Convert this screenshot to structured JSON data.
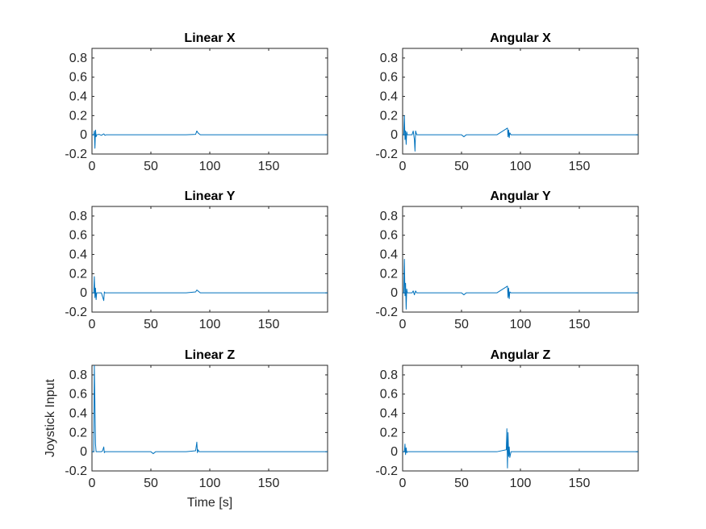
{
  "colors": {
    "series": "#0072BD",
    "axes": "#262626",
    "background": "#ffffff"
  },
  "chart_data": [
    {
      "type": "line",
      "title": "Linear X",
      "xlabel": "",
      "ylabel": "",
      "xlim": [
        0,
        200
      ],
      "ylim": [
        -0.2,
        0.9
      ],
      "xticks": [
        0,
        50,
        100,
        150
      ],
      "yticks": [
        -0.2,
        0,
        0.2,
        0.4,
        0.6,
        0.8
      ],
      "ytick_labels": [
        "-0.2",
        "0",
        "0.2",
        "0.4",
        "0.6",
        "0.8"
      ],
      "grid": false,
      "series": [
        {
          "x": [
            0,
            1.5,
            2,
            2.5,
            3,
            3.5,
            4,
            6,
            8,
            10,
            11,
            12,
            20,
            40,
            60,
            80,
            88,
            89,
            90,
            91,
            92,
            93,
            100,
            120,
            150,
            180,
            200
          ],
          "values": [
            0,
            0,
            0.04,
            -0.14,
            0.05,
            -0.02,
            0,
            0.005,
            -0.005,
            0.01,
            -0.005,
            0,
            0,
            0,
            0,
            0,
            0.005,
            0.04,
            0.02,
            0.01,
            0,
            0,
            0,
            0,
            0,
            0,
            0
          ]
        }
      ]
    },
    {
      "type": "line",
      "title": "Angular X",
      "xlabel": "",
      "ylabel": "",
      "xlim": [
        0,
        200
      ],
      "ylim": [
        -0.2,
        0.9
      ],
      "xticks": [
        0,
        50,
        100,
        150
      ],
      "yticks": [
        -0.2,
        0,
        0.2,
        0.4,
        0.6,
        0.8
      ],
      "ytick_labels": [
        "-0.2",
        "0",
        "0.2",
        "0.4",
        "0.6",
        "0.8"
      ],
      "grid": false,
      "series": [
        {
          "x": [
            0,
            1,
            1.5,
            2,
            2.5,
            3,
            3.5,
            4,
            6,
            8,
            9,
            10,
            10.5,
            11,
            12,
            20,
            40,
            50,
            52,
            54,
            60,
            80,
            89,
            89.5,
            90,
            90.5,
            91,
            92,
            100,
            120,
            150,
            180,
            200
          ],
          "values": [
            0,
            0,
            0.2,
            -0.05,
            0.04,
            -0.1,
            0.03,
            0,
            0,
            0,
            0.04,
            -0.05,
            -0.17,
            0.04,
            0,
            0,
            0,
            0,
            -0.02,
            0,
            0,
            0,
            0.07,
            -0.02,
            0.05,
            -0.03,
            0.02,
            0,
            0,
            0,
            0,
            0,
            0
          ]
        }
      ]
    },
    {
      "type": "line",
      "title": "Linear Y",
      "xlabel": "",
      "ylabel": "",
      "xlim": [
        0,
        200
      ],
      "ylim": [
        -0.2,
        0.9
      ],
      "xticks": [
        0,
        50,
        100,
        150
      ],
      "yticks": [
        -0.2,
        0,
        0.2,
        0.4,
        0.6,
        0.8
      ],
      "ytick_labels": [
        "-0.2",
        "0",
        "0.2",
        "0.4",
        "0.6",
        "0.8"
      ],
      "grid": false,
      "series": [
        {
          "x": [
            0,
            1.5,
            2,
            2.5,
            3,
            3.5,
            4,
            8,
            9,
            10,
            10.5,
            11,
            12,
            20,
            50,
            80,
            88,
            89,
            90,
            91,
            92,
            100,
            150,
            200
          ],
          "values": [
            0,
            0,
            0.17,
            -0.05,
            0.05,
            -0.07,
            0,
            0,
            -0.04,
            -0.08,
            0.01,
            0,
            0,
            0,
            0,
            0,
            0.01,
            0.03,
            0.02,
            0.01,
            0,
            0,
            0,
            0
          ]
        }
      ]
    },
    {
      "type": "line",
      "title": "Angular Y",
      "xlabel": "",
      "ylabel": "",
      "xlim": [
        0,
        200
      ],
      "ylim": [
        -0.2,
        0.9
      ],
      "xticks": [
        0,
        50,
        100,
        150
      ],
      "yticks": [
        -0.2,
        0,
        0.2,
        0.4,
        0.6,
        0.8
      ],
      "ytick_labels": [
        "-0.2",
        "0",
        "0.2",
        "0.4",
        "0.6",
        "0.8"
      ],
      "grid": false,
      "series": [
        {
          "x": [
            0,
            1,
            1.5,
            2,
            2.5,
            3,
            3.5,
            4,
            8,
            9,
            10,
            11,
            12,
            20,
            50,
            52,
            54,
            80,
            89,
            89.5,
            90,
            90.5,
            91,
            92,
            100,
            150,
            200
          ],
          "values": [
            0,
            0,
            0.35,
            -0.03,
            0.1,
            -0.17,
            0.04,
            0,
            0,
            0.02,
            -0.02,
            0.02,
            0,
            0,
            0,
            -0.02,
            0,
            0,
            0.07,
            -0.05,
            0.05,
            -0.06,
            0.01,
            0,
            0,
            0,
            0
          ]
        }
      ]
    },
    {
      "type": "line",
      "title": "Linear Z",
      "xlabel": "Time [s]",
      "ylabel": "Joystick Input",
      "xlim": [
        0,
        200
      ],
      "ylim": [
        -0.2,
        0.9
      ],
      "xticks": [
        0,
        50,
        100,
        150
      ],
      "yticks": [
        -0.2,
        0,
        0.2,
        0.4,
        0.6,
        0.8
      ],
      "ytick_labels": [
        "-0.2",
        "0",
        "0.2",
        "0.4",
        "0.6",
        "0.8"
      ],
      "grid": false,
      "series": [
        {
          "x": [
            0,
            1.5,
            2,
            2.5,
            3,
            3.5,
            4,
            6,
            8,
            9,
            10,
            10.5,
            11,
            12,
            20,
            50,
            52,
            54,
            80,
            88,
            89,
            89.5,
            90,
            91,
            100,
            150,
            200
          ],
          "values": [
            0,
            0,
            0.9,
            0.5,
            0.08,
            0,
            0,
            0,
            0,
            0.01,
            0.05,
            -0.01,
            0,
            0,
            0,
            0,
            -0.02,
            0,
            0,
            0.01,
            0.1,
            -0.01,
            0.02,
            0,
            0,
            0,
            0
          ]
        }
      ]
    },
    {
      "type": "line",
      "title": "Angular Z",
      "xlabel": "",
      "ylabel": "",
      "xlim": [
        0,
        200
      ],
      "ylim": [
        -0.2,
        0.9
      ],
      "xticks": [
        0,
        50,
        100,
        150
      ],
      "yticks": [
        -0.2,
        0,
        0.2,
        0.4,
        0.6,
        0.8
      ],
      "ytick_labels": [
        "-0.2",
        "0",
        "0.2",
        "0.4",
        "0.6",
        "0.8"
      ],
      "grid": false,
      "series": [
        {
          "x": [
            0,
            1.5,
            2,
            2.5,
            3,
            3.5,
            4,
            6,
            10,
            50,
            80,
            88,
            88.5,
            89,
            89.5,
            90,
            90.5,
            91,
            92,
            100,
            150,
            200
          ],
          "values": [
            0,
            0,
            0.08,
            -0.03,
            0.04,
            -0.01,
            0,
            0,
            0,
            0,
            0,
            0.02,
            0.24,
            -0.17,
            0.2,
            -0.05,
            0.05,
            -0.06,
            0,
            0,
            0,
            0
          ]
        }
      ]
    }
  ]
}
